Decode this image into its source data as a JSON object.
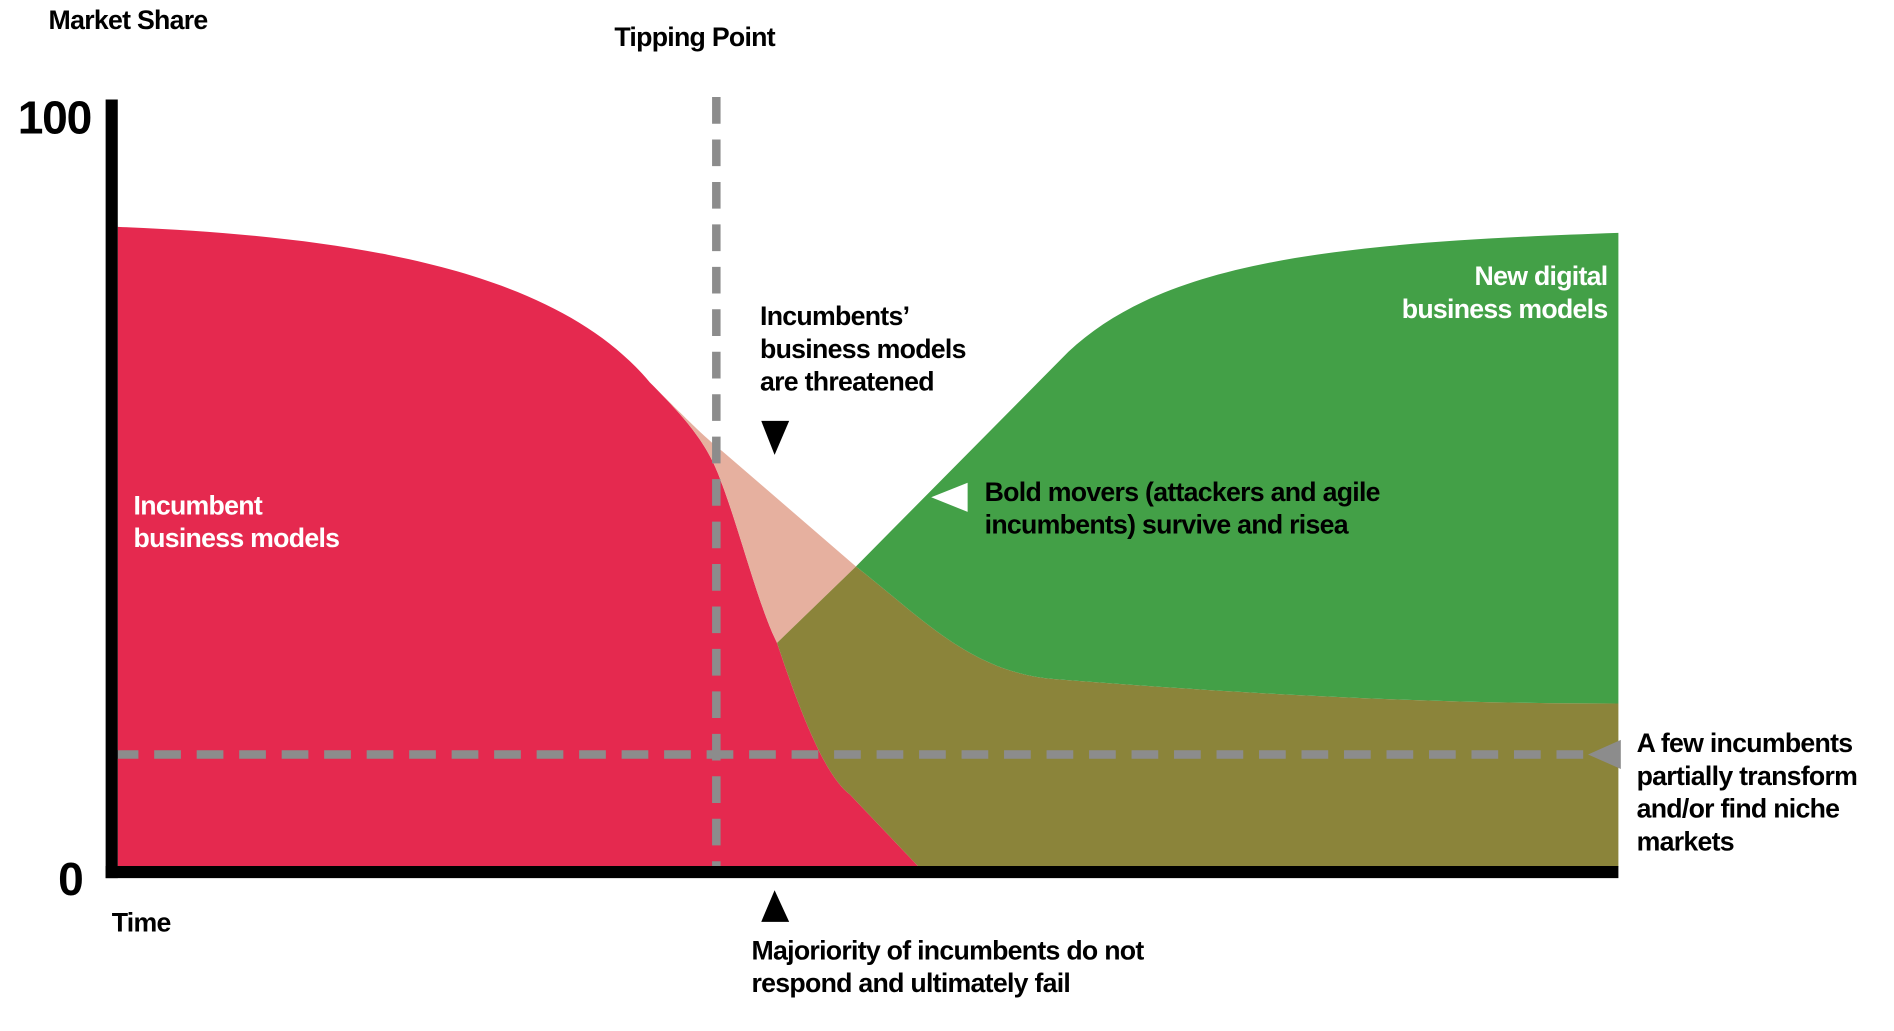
{
  "axes": {
    "y_label": "Market Share",
    "x_label": "Time",
    "y_max_label": "100",
    "y_min_label": "0"
  },
  "tipping_point": {
    "label": "Tipping Point"
  },
  "regions": [
    {
      "lines": [
        "Incumbent",
        "business models"
      ]
    },
    {
      "lines": [
        "New digital",
        "business models"
      ]
    }
  ],
  "annotations": [
    {
      "lines": [
        "Incumbents’",
        "business models",
        "are threatened"
      ]
    },
    {
      "lines": [
        "Bold movers (attackers and agile",
        "incumbents) survive and risea"
      ]
    },
    {
      "lines": [
        "A few incumbents",
        "partially transform",
        "and/or find niche",
        "markets"
      ]
    },
    {
      "lines": [
        "Majoriority of incumbents do not",
        "respond and ultimately fail"
      ]
    }
  ]
}
